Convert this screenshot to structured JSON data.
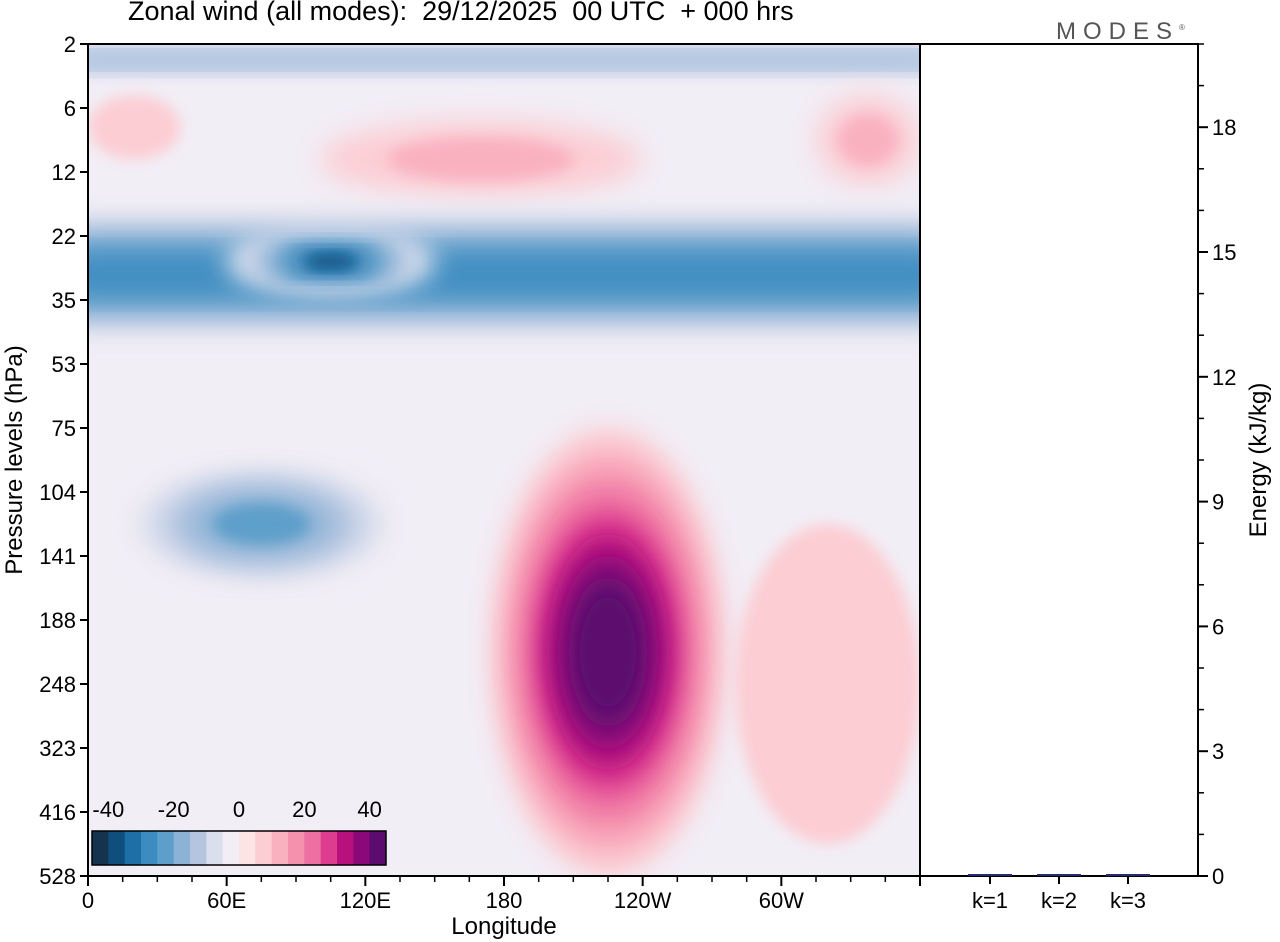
{
  "header": {
    "title": "Zonal wind (all modes):  29/12/2025  00 UTC  + 000 hrs",
    "brand": "MODES"
  },
  "colors": {
    "palette": [
      "#15334f",
      "#0e4f7e",
      "#1e6fa8",
      "#3c8cc1",
      "#5d9fcb",
      "#8cb3d6",
      "#b5c5e0",
      "#dadfee",
      "#f3eef5",
      "#fde4e4",
      "#fccdd3",
      "#f9b1c0",
      "#f591ad",
      "#ee6fa1",
      "#dd3c8f",
      "#b8117e",
      "#8a087a",
      "#5b0c6e"
    ],
    "background_pos": "#fdf3f3",
    "background_neg": "#f2eef6"
  },
  "chart_data": [
    {
      "type": "heatmap",
      "title": "Zonal wind (all modes)",
      "xlabel": "Longitude",
      "ylabel": "Pressure levels (hPa)",
      "x_ticks": [
        "0",
        "60E",
        "120E",
        "180",
        "120W",
        "60W"
      ],
      "x_tick_values": [
        0,
        60,
        120,
        180,
        240,
        300
      ],
      "xlim": [
        0,
        360
      ],
      "y_ticks": [
        "2",
        "6",
        "12",
        "22",
        "35",
        "53",
        "75",
        "104",
        "141",
        "188",
        "248",
        "323",
        "416",
        "528"
      ],
      "colorbar": {
        "labels": [
          "-40",
          "-20",
          "0",
          "20",
          "40"
        ],
        "label_values": [
          -40,
          -20,
          0,
          20,
          40
        ],
        "range": [
          -45,
          45
        ],
        "step": 5
      },
      "features": [
        {
          "name": "easterly band upper stratosphere",
          "lon": [
            0,
            360
          ],
          "level_index": [
            0,
            0.5
          ],
          "value": -20
        },
        {
          "name": "westerly patch",
          "lon": [
            0,
            40
          ],
          "level_index": [
            0.8,
            1.8
          ],
          "value": 8
        },
        {
          "name": "westerly band mid stratosphere",
          "lon": [
            100,
            240
          ],
          "level_index": [
            1.2,
            2.4
          ],
          "value": 10
        },
        {
          "name": "westerly patch east",
          "lon": [
            315,
            360
          ],
          "level_index": [
            0.8,
            2.2
          ],
          "value": 12
        },
        {
          "name": "easterly jet",
          "lon": [
            0,
            360
          ],
          "level_index": [
            2.6,
            4.6
          ],
          "value": -30
        },
        {
          "name": "easterly core",
          "lon": [
            60,
            150
          ],
          "level_index": [
            3.0,
            3.8
          ],
          "value": -40
        },
        {
          "name": "easterly lower stratosphere",
          "lon": [
            10,
            140
          ],
          "level_index": [
            6.5,
            8.5
          ],
          "value": -25
        },
        {
          "name": "westerly jet core",
          "lon": [
            175,
            275
          ],
          "level_index": [
            6.0,
            13.0
          ],
          "value": 45
        },
        {
          "name": "weak westerlies east",
          "lon": [
            280,
            360
          ],
          "level_index": [
            7.5,
            12.5
          ],
          "value": 8
        }
      ]
    },
    {
      "type": "bar",
      "ylabel": "Energy (kJ/kg)",
      "categories": [
        "k=1",
        "k=2",
        "k=3"
      ],
      "values": [
        0.03,
        0.02,
        0.02
      ],
      "ylim": [
        0,
        20
      ],
      "y_ticks": [
        0,
        3,
        6,
        9,
        12,
        15,
        18
      ]
    }
  ]
}
